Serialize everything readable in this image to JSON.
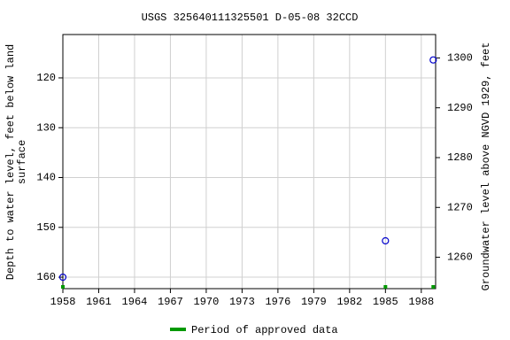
{
  "chart_data": {
    "type": "scatter",
    "title": "USGS 325640111325501 D-05-08 32CCD",
    "ylabel": [
      "Depth to water level, feet below land",
      "surface"
    ],
    "y2label": "Groundwater level above NGVD 1929, feet",
    "x": [
      1958,
      1985,
      1989
    ],
    "values": [
      160,
      152.7,
      116.4
    ],
    "point_color": "#0000cc",
    "xlim": [
      1958,
      1989.2
    ],
    "xticks": [
      1958,
      1961,
      1964,
      1967,
      1970,
      1973,
      1976,
      1979,
      1982,
      1985,
      1988
    ],
    "ylim": [
      111.3,
      162.3
    ],
    "y_inverted": true,
    "yticks": [
      120,
      130,
      140,
      150,
      160
    ],
    "y2lim": [
      1253.7,
      1304.7
    ],
    "y2ticks": [
      1260,
      1270,
      1280,
      1290,
      1300
    ],
    "grid": true,
    "approved": {
      "name": "Period of approved data",
      "color": "#009900",
      "x": [
        1958,
        1985,
        1989
      ]
    }
  }
}
